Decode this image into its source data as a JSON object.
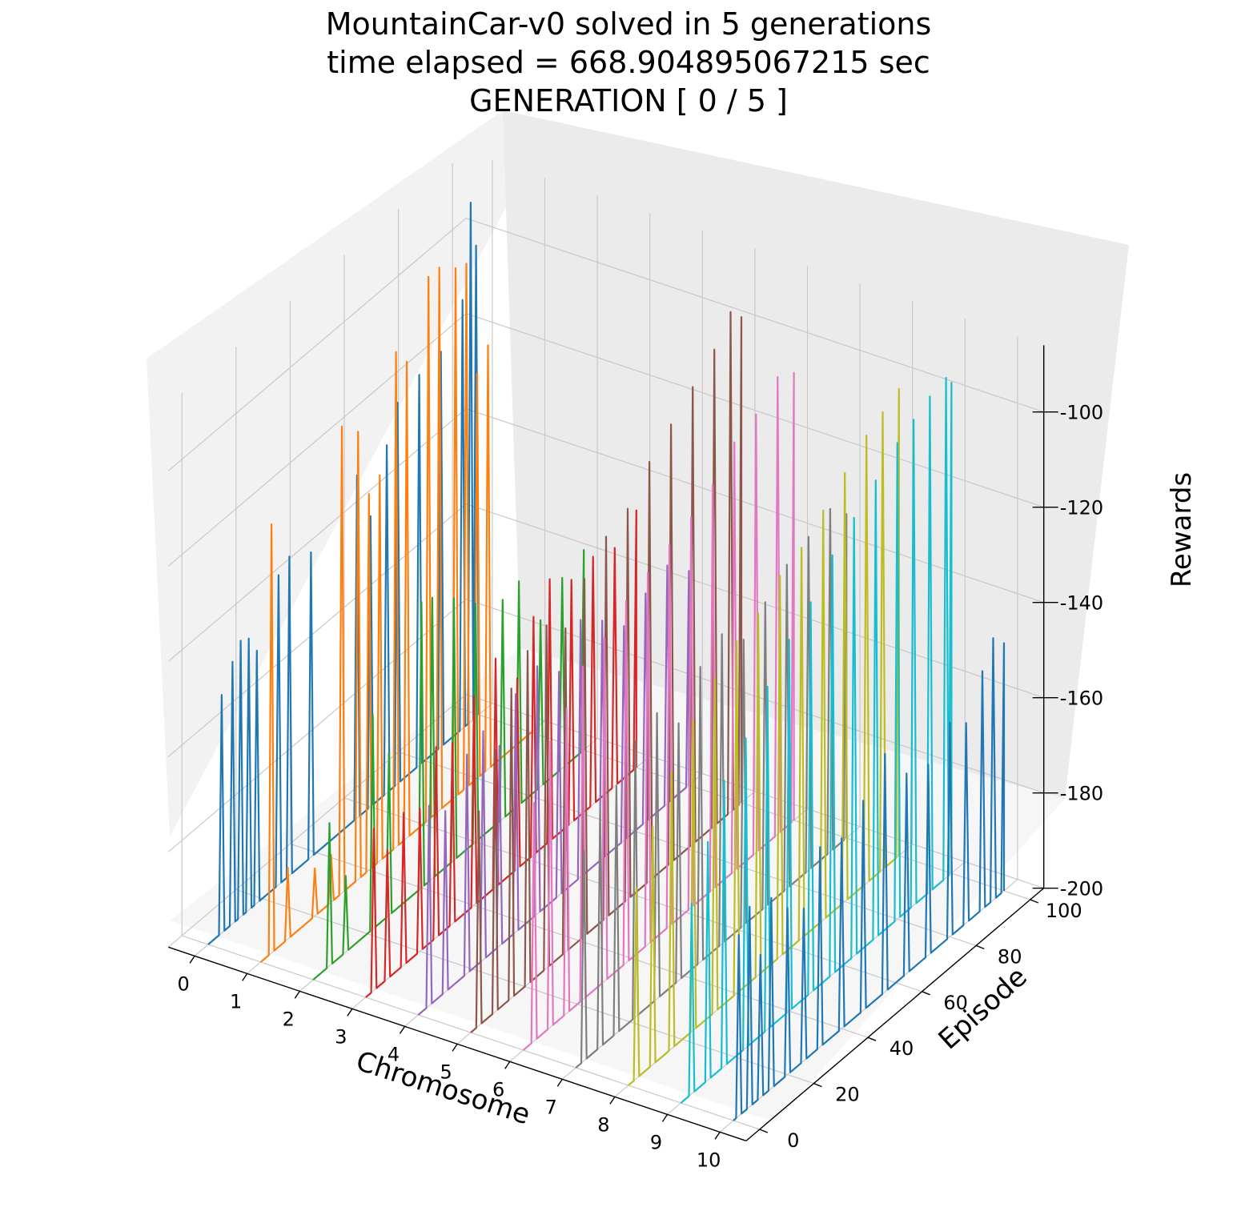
{
  "chart_data": {
    "type": "line",
    "projection": "3d",
    "title": [
      "MountainCar-v0 solved in 5 generations",
      "time elapsed = 668.904895067215 sec",
      "GENERATION [ 0 / 5 ]"
    ],
    "xlabel": "Chromosome",
    "ylabel": "Episode",
    "zlabel": "Rewards",
    "xlim": [
      -0.5,
      10.5
    ],
    "ylim": [
      -5,
      105
    ],
    "zlim": [
      -200,
      -86
    ],
    "x_ticks": [
      "0",
      "1",
      "2",
      "3",
      "4",
      "5",
      "6",
      "7",
      "8",
      "9",
      "10"
    ],
    "y_ticks": [
      "0",
      "20",
      "40",
      "60",
      "80",
      "100"
    ],
    "z_ticks": [
      "-100",
      "-120",
      "-140",
      "-160",
      "-180",
      "-200"
    ],
    "grid": true,
    "legend": "none",
    "series_colors": [
      "#1f77b4",
      "#ff7f0e",
      "#2ca02c",
      "#d62728",
      "#9467bd",
      "#8c564b",
      "#e377c2",
      "#7f7f7f",
      "#bcbd22",
      "#17becf",
      "#1f77b4"
    ],
    "series": [
      {
        "x": 0,
        "episodes": [
          0,
          100
        ],
        "peaks": [
          [
            5,
            -150
          ],
          [
            9,
            -145
          ],
          [
            12,
            -142
          ],
          [
            15,
            -143
          ],
          [
            18,
            -147
          ],
          [
            26,
            -135
          ],
          [
            30,
            -133
          ],
          [
            38,
            -136
          ],
          [
            55,
            -128
          ],
          [
            60,
            -139
          ],
          [
            66,
            -127
          ],
          [
            70,
            -120
          ],
          [
            78,
            -118
          ],
          [
            86,
            -117
          ],
          [
            94,
            -110
          ],
          [
            97,
            -91
          ],
          [
            99,
            -101
          ]
        ],
        "baseline": -200
      },
      {
        "x": 1,
        "episodes": [
          0,
          100
        ],
        "peaks": [
          [
            4,
            -110
          ],
          [
            10,
            -185
          ],
          [
            20,
            -190
          ],
          [
            26,
            -190
          ],
          [
            30,
            -102
          ],
          [
            36,
            -106
          ],
          [
            40,
            -121
          ],
          [
            44,
            -119
          ],
          [
            50,
            -96
          ],
          [
            54,
            -100
          ],
          [
            62,
            -86
          ],
          [
            66,
            -86
          ],
          [
            72,
            -89
          ],
          [
            76,
            -90
          ],
          [
            80,
            -115
          ],
          [
            84,
            -111
          ]
        ],
        "baseline": -200
      },
      {
        "x": 2,
        "episodes": [
          0,
          100
        ],
        "peaks": [
          [
            6,
            -170
          ],
          [
            12,
            -184
          ],
          [
            22,
            -155
          ],
          [
            28,
            -166
          ],
          [
            40,
            -140
          ],
          [
            44,
            -141
          ],
          [
            52,
            -145
          ],
          [
            60,
            -150
          ],
          [
            70,
            -154
          ],
          [
            76,
            -153
          ],
          [
            84,
            -165
          ],
          [
            92,
            -160
          ],
          [
            100,
            -158
          ]
        ],
        "baseline": -200
      },
      {
        "x": 3,
        "episodes": [
          0,
          100
        ],
        "peaks": [
          [
            3,
            -166
          ],
          [
            8,
            -173
          ],
          [
            14,
            -168
          ],
          [
            20,
            -170
          ],
          [
            26,
            -160
          ],
          [
            32,
            -162
          ],
          [
            40,
            -156
          ],
          [
            48,
            -152
          ],
          [
            56,
            -160
          ],
          [
            62,
            -150
          ],
          [
            68,
            -145
          ],
          [
            76,
            -149
          ],
          [
            84,
            -148
          ],
          [
            92,
            -150
          ],
          [
            100,
            -146
          ]
        ],
        "baseline": -200
      },
      {
        "x": 4,
        "episodes": [
          0,
          100
        ],
        "peaks": [
          [
            4,
            -158
          ],
          [
            10,
            -162
          ],
          [
            18,
            -154
          ],
          [
            24,
            -152
          ],
          [
            30,
            -158
          ],
          [
            36,
            -150
          ],
          [
            44,
            -148
          ],
          [
            52,
            -153
          ],
          [
            60,
            -146
          ],
          [
            68,
            -150
          ],
          [
            76,
            -155
          ],
          [
            84,
            -152
          ],
          [
            92,
            -150
          ],
          [
            100,
            -155
          ]
        ],
        "baseline": -200
      },
      {
        "x": 5,
        "episodes": [
          0,
          100
        ],
        "peaks": [
          [
            3,
            -155
          ],
          [
            9,
            -145
          ],
          [
            15,
            -135
          ],
          [
            21,
            -130
          ],
          [
            28,
            -128
          ],
          [
            35,
            -132
          ],
          [
            42,
            -125
          ],
          [
            50,
            -120
          ],
          [
            58,
            -118
          ],
          [
            66,
            -112
          ],
          [
            74,
            -108
          ],
          [
            82,
            -104
          ],
          [
            90,
            -100
          ],
          [
            96,
            -95
          ],
          [
            100,
            -98
          ]
        ],
        "baseline": -200
      },
      {
        "x": 6,
        "episodes": [
          0,
          100
        ],
        "peaks": [
          [
            4,
            -150
          ],
          [
            10,
            -140
          ],
          [
            16,
            -136
          ],
          [
            22,
            -130
          ],
          [
            30,
            -128
          ],
          [
            38,
            -124
          ],
          [
            46,
            -122
          ],
          [
            54,
            -120
          ],
          [
            62,
            -118
          ],
          [
            70,
            -115
          ],
          [
            78,
            -110
          ],
          [
            86,
            -108
          ],
          [
            94,
            -104
          ],
          [
            100,
            -106
          ]
        ],
        "baseline": -200
      },
      {
        "x": 7,
        "episodes": [
          0,
          100
        ],
        "peaks": [
          [
            3,
            -156
          ],
          [
            9,
            -150
          ],
          [
            15,
            -148
          ],
          [
            22,
            -142
          ],
          [
            30,
            -140
          ],
          [
            38,
            -146
          ],
          [
            46,
            -138
          ],
          [
            54,
            -135
          ],
          [
            62,
            -140
          ],
          [
            70,
            -136
          ],
          [
            78,
            -132
          ],
          [
            86,
            -130
          ],
          [
            94,
            -128
          ],
          [
            100,
            -132
          ]
        ],
        "baseline": -200
      },
      {
        "x": 8,
        "episodes": [
          0,
          100
        ],
        "peaks": [
          [
            3,
            -160
          ],
          [
            9,
            -150
          ],
          [
            16,
            -142
          ],
          [
            24,
            -135
          ],
          [
            32,
            -130
          ],
          [
            40,
            -126
          ],
          [
            48,
            -124
          ],
          [
            56,
            -120
          ],
          [
            64,
            -118
          ],
          [
            72,
            -114
          ],
          [
            80,
            -110
          ],
          [
            88,
            -106
          ],
          [
            94,
            -104
          ],
          [
            100,
            -102
          ]
        ],
        "baseline": -200
      },
      {
        "x": 9,
        "episodes": [
          0,
          100
        ],
        "peaks": [
          [
            4,
            -160
          ],
          [
            10,
            -150
          ],
          [
            16,
            -140
          ],
          [
            24,
            -135
          ],
          [
            32,
            -128
          ],
          [
            40,
            -122
          ],
          [
            48,
            -118
          ],
          [
            56,
            -112
          ],
          [
            64,
            -108
          ],
          [
            72,
            -104
          ],
          [
            80,
            -100
          ],
          [
            86,
            -98
          ],
          [
            92,
            -96
          ],
          [
            98,
            -95
          ],
          [
            100,
            -97
          ]
        ],
        "baseline": -200
      },
      {
        "x": 10,
        "episodes": [
          0,
          100
        ],
        "peaks": [
          [
            2,
            -162
          ],
          [
            6,
            -158
          ],
          [
            10,
            -170
          ],
          [
            14,
            -160
          ],
          [
            20,
            -165
          ],
          [
            26,
            -168
          ],
          [
            32,
            -158
          ],
          [
            40,
            -160
          ],
          [
            48,
            -156
          ],
          [
            56,
            -150
          ],
          [
            64,
            -158
          ],
          [
            72,
            -160
          ],
          [
            80,
            -155
          ],
          [
            86,
            -158
          ],
          [
            92,
            -150
          ],
          [
            96,
            -145
          ],
          [
            100,
            -148
          ]
        ],
        "baseline": -200
      }
    ]
  }
}
